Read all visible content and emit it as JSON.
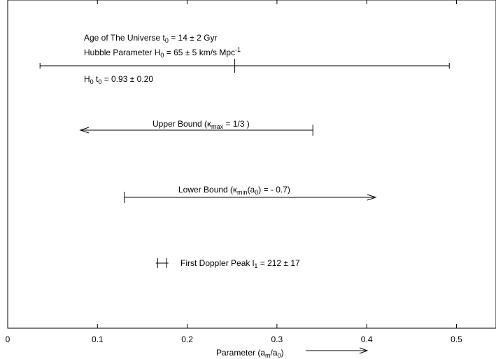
{
  "chart_data": {
    "type": "scatter",
    "xlabel": "Parameter (a",
    "xlabel_sub": "m",
    "xlabel_mid": "/a",
    "xlabel_sub2": "0",
    "xlabel_end": ")",
    "xlim": [
      0,
      0.55
    ],
    "x_ticks": [
      0,
      0.1,
      0.2,
      0.3,
      0.4,
      0.5
    ],
    "x_tick_labels": [
      "0",
      "0.1",
      "0.2",
      "0.3",
      "0.4",
      "0.5"
    ],
    "grid": false,
    "rows": [
      {
        "kind": "errorbar",
        "x": 0.253,
        "xmin": 0.036,
        "xmax": 0.492,
        "texts": [
          {
            "parts": [
              [
                "Age of The Universe t",
                ""
              ],
              [
                "0",
                "sub"
              ],
              [
                " = 14 ± 2 Gyr",
                ""
              ]
            ]
          },
          {
            "parts": [
              [
                "Hubble Parameter H",
                ""
              ],
              [
                "0",
                "sub"
              ],
              [
                " = 65 ± 5 km/s Mpc",
                ""
              ],
              [
                "-1",
                "sup"
              ]
            ]
          },
          {
            "parts": [
              [
                "H",
                ""
              ],
              [
                "0",
                "sub"
              ],
              [
                " t",
                ""
              ],
              [
                "0",
                "sub"
              ],
              [
                " = 0.93 ± 0.20",
                ""
              ]
            ]
          }
        ]
      },
      {
        "kind": "upper-bound",
        "x": 0.34,
        "arrow_to": 0.081,
        "texts": [
          {
            "parts": [
              [
                "Upper Bound (κ",
                ""
              ],
              [
                "max",
                "sub"
              ],
              [
                " = 1/3 )",
                ""
              ]
            ]
          }
        ]
      },
      {
        "kind": "lower-bound",
        "x": 0.13,
        "arrow_to": 0.41,
        "texts": [
          {
            "parts": [
              [
                "Lower Bound (κ",
                ""
              ],
              [
                "min",
                "sub"
              ],
              [
                "(a",
                ""
              ],
              [
                "0",
                "sub"
              ],
              [
                ") = - 0.7)",
                ""
              ]
            ]
          }
        ]
      },
      {
        "kind": "point",
        "x": 0.172,
        "xmin": 0.167,
        "xmax": 0.177,
        "texts": [
          {
            "parts": [
              [
                "First Doppler Peak l",
                ""
              ],
              [
                "1",
                "sub"
              ],
              [
                " = 212 ± 17",
                ""
              ]
            ]
          }
        ]
      }
    ]
  }
}
